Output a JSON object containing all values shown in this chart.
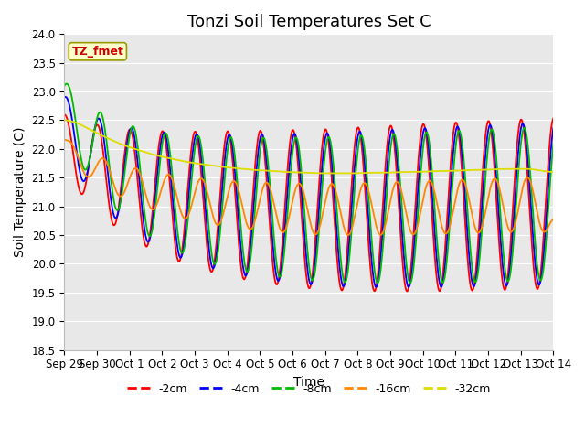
{
  "title": "Tonzi Soil Temperatures Set C",
  "xlabel": "Time",
  "ylabel": "Soil Temperature (C)",
  "ylim": [
    18.5,
    24.0
  ],
  "yticks": [
    18.5,
    19.0,
    19.5,
    20.0,
    20.5,
    21.0,
    21.5,
    22.0,
    22.5,
    23.0,
    23.5,
    24.0
  ],
  "xtick_labels": [
    "Sep 29",
    "Sep 30",
    "Oct 1",
    "Oct 2",
    "Oct 3",
    "Oct 4",
    "Oct 5",
    "Oct 6",
    "Oct 7",
    "Oct 8",
    "Oct 9",
    "Oct 10",
    "Oct 11",
    "Oct 12",
    "Oct 13",
    "Oct 14"
  ],
  "line_colors": {
    "-2cm": "#ff0000",
    "-4cm": "#0000ff",
    "-8cm": "#00bb00",
    "-16cm": "#ff8800",
    "-32cm": "#dddd00"
  },
  "annotation_label": "TZ_fmet",
  "annotation_color": "#cc0000",
  "annotation_bg": "#ffffcc",
  "annotation_border": "#999900",
  "plot_bg": "#e8e8e8",
  "title_fontsize": 13,
  "label_fontsize": 10,
  "tick_fontsize": 8.5
}
